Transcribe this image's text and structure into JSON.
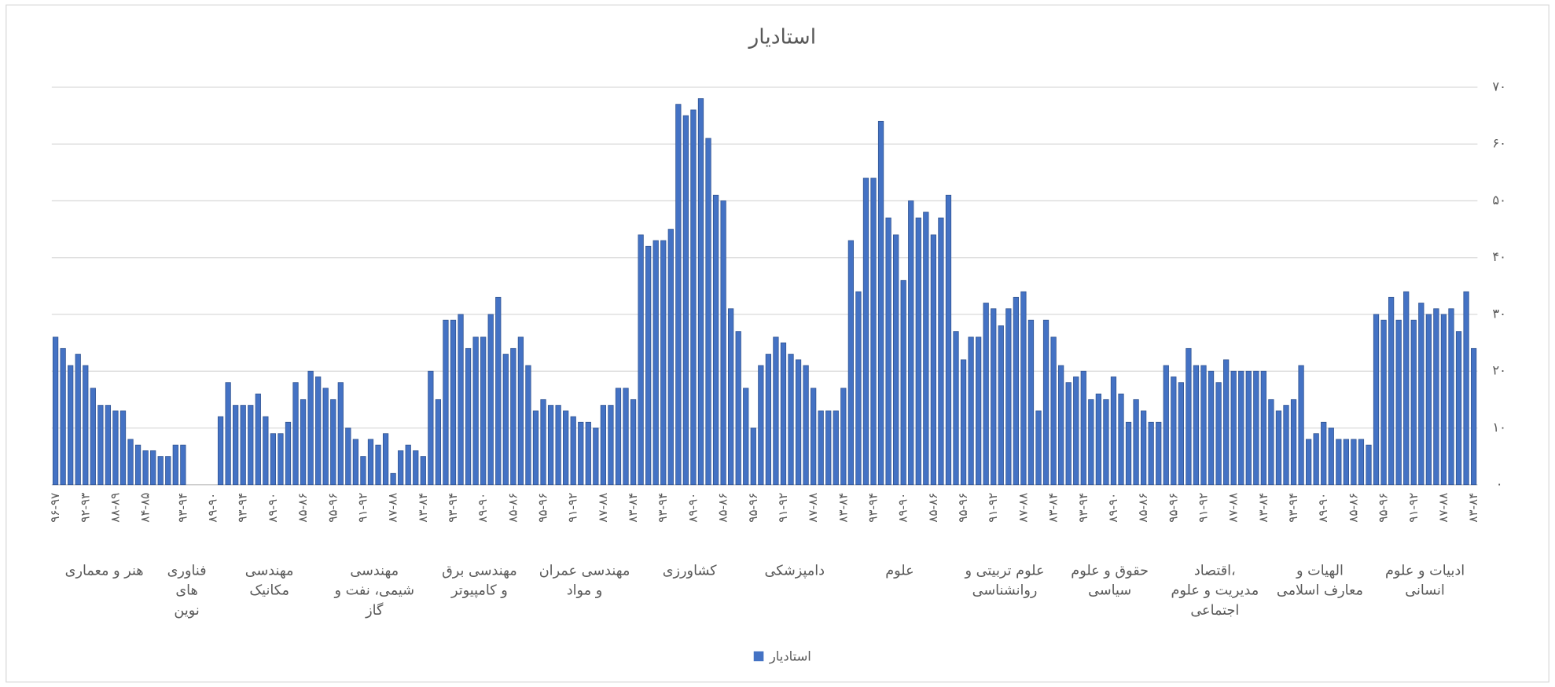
{
  "chart_data": {
    "type": "bar",
    "title": "استادیار",
    "series_name": "استادیار",
    "color": "#4472c4",
    "ylim": [
      0,
      70
    ],
    "yticks": [
      {
        "value": 0,
        "label": "۰"
      },
      {
        "value": 10,
        "label": "۱۰"
      },
      {
        "value": 20,
        "label": "۲۰"
      },
      {
        "value": 30,
        "label": "۳۰"
      },
      {
        "value": 40,
        "label": "۴۰"
      },
      {
        "value": 50,
        "label": "۵۰"
      },
      {
        "value": 60,
        "label": "۶۰"
      },
      {
        "value": 70,
        "label": "۷۰"
      }
    ],
    "grid": true,
    "direction": "rtl",
    "groups": [
      {
        "name": [
          "ادبیات و علوم",
          "انسانی"
        ],
        "categories": [
          "۸۳-۸۴",
          null,
          null,
          null,
          "۸۷-۸۸",
          null,
          null,
          null,
          "۹۱-۹۲",
          null,
          null,
          null,
          "۹۵-۹۶",
          null
        ],
        "values": [
          24,
          34,
          27,
          31,
          30,
          31,
          30,
          32,
          29,
          34,
          29,
          33,
          29,
          30
        ]
      },
      {
        "name": [
          "الهیات و",
          "معارف اسلامی"
        ],
        "categories": [
          null,
          null,
          "۸۵-۸۶",
          null,
          null,
          null,
          "۸۹-۹۰",
          null,
          null,
          null,
          "۹۳-۹۴",
          null,
          null,
          null
        ],
        "values": [
          7,
          8,
          8,
          8,
          8,
          10,
          11,
          9,
          8,
          21,
          15,
          14,
          13,
          15
        ]
      },
      {
        "name": [
          "اقتصاد،",
          "مدیریت و علوم",
          "اجتماعی"
        ],
        "categories": [
          "۸۳-۸۴",
          null,
          null,
          null,
          "۸۷-۸۸",
          null,
          null,
          null,
          "۹۱-۹۲",
          null,
          null,
          null,
          "۹۵-۹۶",
          null
        ],
        "values": [
          20,
          20,
          20,
          20,
          20,
          22,
          18,
          20,
          21,
          21,
          24,
          18,
          19,
          21
        ]
      },
      {
        "name": [
          "حقوق و علوم",
          "سیاسی"
        ],
        "categories": [
          null,
          null,
          "۸۵-۸۶",
          null,
          null,
          null,
          "۸۹-۹۰",
          null,
          null,
          null,
          "۹۳-۹۴",
          null,
          null,
          null
        ],
        "values": [
          11,
          11,
          13,
          15,
          11,
          16,
          19,
          15,
          16,
          15,
          20,
          19,
          18,
          21
        ]
      },
      {
        "name": [
          "علوم تربیتی و",
          "روانشناسی"
        ],
        "categories": [
          "۸۳-۸۴",
          null,
          null,
          null,
          "۸۷-۸۸",
          null,
          null,
          null,
          "۹۱-۹۲",
          null,
          null,
          null,
          "۹۵-۹۶",
          null
        ],
        "values": [
          26,
          29,
          13,
          29,
          34,
          33,
          31,
          28,
          31,
          32,
          26,
          26,
          22,
          27
        ]
      },
      {
        "name": [
          "علوم"
        ],
        "categories": [
          null,
          null,
          "۸۵-۸۶",
          null,
          null,
          null,
          "۸۹-۹۰",
          null,
          null,
          null,
          "۹۳-۹۴",
          null,
          null,
          null
        ],
        "values": [
          51,
          47,
          44,
          48,
          47,
          50,
          36,
          44,
          47,
          64,
          54,
          54,
          34,
          43
        ]
      },
      {
        "name": [
          "دامپزشکی"
        ],
        "categories": [
          "۸۳-۸۴",
          null,
          null,
          null,
          "۸۷-۸۸",
          null,
          null,
          null,
          "۹۱-۹۲",
          null,
          null,
          null,
          "۹۵-۹۶",
          null
        ],
        "values": [
          17,
          13,
          13,
          13,
          17,
          21,
          22,
          23,
          25,
          26,
          23,
          21,
          10,
          17
        ]
      },
      {
        "name": [
          "کشاورزی"
        ],
        "categories": [
          null,
          null,
          "۸۵-۸۶",
          null,
          null,
          null,
          "۸۹-۹۰",
          null,
          null,
          null,
          "۹۳-۹۴",
          null,
          null,
          null
        ],
        "values": [
          27,
          31,
          50,
          51,
          61,
          68,
          66,
          65,
          67,
          45,
          43,
          43,
          42,
          44
        ]
      },
      {
        "name": [
          "مهندسی عمران",
          "و مواد"
        ],
        "categories": [
          "۸۳-۸۴",
          null,
          null,
          null,
          "۸۷-۸۸",
          null,
          null,
          null,
          "۹۱-۹۲",
          null,
          null,
          null,
          "۹۵-۹۶",
          null
        ],
        "values": [
          15,
          17,
          17,
          14,
          14,
          10,
          11,
          11,
          12,
          13,
          14,
          14,
          15,
          13
        ]
      },
      {
        "name": [
          "مهندسی برق",
          "و کامپیوتر"
        ],
        "categories": [
          null,
          null,
          "۸۵-۸۶",
          null,
          null,
          null,
          "۸۹-۹۰",
          null,
          null,
          null,
          "۹۳-۹۴",
          null,
          null,
          null
        ],
        "values": [
          21,
          26,
          24,
          23,
          33,
          30,
          26,
          26,
          24,
          30,
          29,
          29,
          15,
          20
        ]
      },
      {
        "name": [
          "مهندسی",
          "شیمی، نفت و",
          "گاز"
        ],
        "categories": [
          "۸۳-۸۴",
          null,
          null,
          null,
          "۸۷-۸۸",
          null,
          null,
          null,
          "۹۱-۹۲",
          null,
          null,
          null,
          "۹۵-۹۶",
          null
        ],
        "values": [
          5,
          6,
          7,
          6,
          2,
          9,
          7,
          8,
          5,
          8,
          10,
          18,
          15,
          17
        ]
      },
      {
        "name": [
          "مهندسی",
          "مکانیک"
        ],
        "categories": [
          null,
          null,
          "۸۵-۸۶",
          null,
          null,
          null,
          "۸۹-۹۰",
          null,
          null,
          null,
          "۹۳-۹۴",
          null,
          null,
          null
        ],
        "values": [
          19,
          20,
          15,
          18,
          11,
          9,
          9,
          12,
          16,
          14,
          14,
          14,
          18,
          12
        ]
      },
      {
        "name": [
          "فناوری",
          "های",
          "نوین"
        ],
        "categories": [
          "۸۹-۹۰",
          null,
          null,
          null,
          "۹۳-۹۴",
          null,
          null,
          null
        ],
        "values": [
          0,
          0,
          0,
          0,
          7,
          7,
          5,
          5
        ]
      },
      {
        "name": [
          "هنر و معماری"
        ],
        "categories": [
          null,
          "۸۴-۸۵",
          null,
          null,
          null,
          "۸۸-۸۹",
          null,
          null,
          null,
          "۹۲-۹۳",
          null,
          null,
          null,
          "۹۶-۹۷"
        ],
        "values": [
          6,
          6,
          7,
          8,
          13,
          13,
          14,
          14,
          17,
          21,
          23,
          21,
          24,
          26
        ]
      }
    ]
  }
}
